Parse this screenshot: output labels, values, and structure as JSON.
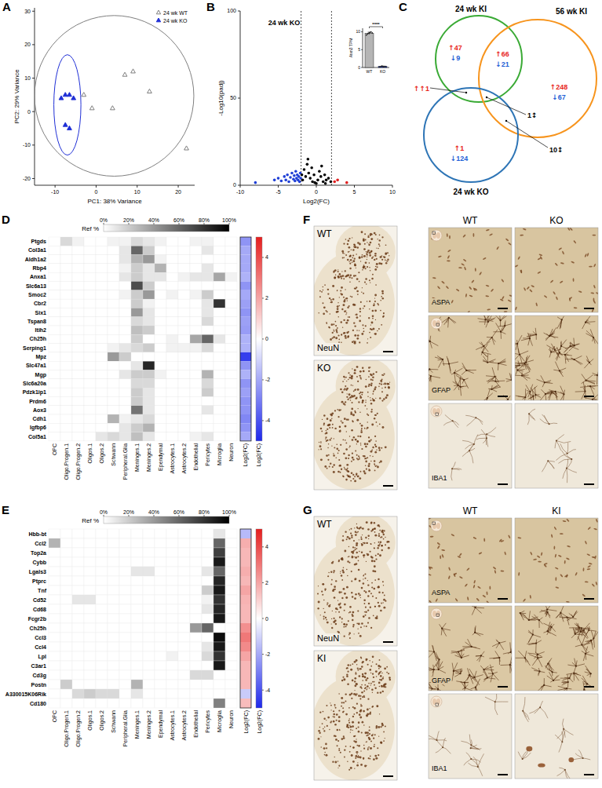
{
  "panel_letters": [
    "A",
    "B",
    "C",
    "D",
    "E",
    "F",
    "G"
  ],
  "chart_data": [
    {
      "type": "scatter",
      "x_label": "PC1: 38% Variance",
      "y_label": "PC2: 29% Variance",
      "xlim": [
        -15,
        24
      ],
      "ylim": [
        -22,
        31
      ],
      "xticks": [
        -10,
        0,
        10,
        20
      ],
      "yticks": [
        -20,
        -10,
        0,
        10,
        20,
        30
      ],
      "legend": "top-right",
      "series": [
        {
          "name": "24 wk WT",
          "color": "#7f7f7f",
          "marker": "triangle-open",
          "x": [
            -3,
            -1,
            4,
            7,
            9,
            13,
            22
          ],
          "values": [
            5,
            1,
            1,
            11,
            12,
            6,
            -11
          ],
          "ellipse": {
            "cx": 4.4,
            "cy": 4.7,
            "rx": 19.4,
            "ry": 24
          }
        },
        {
          "name": "24 wk KO",
          "color": "#1f2fd6",
          "marker": "triangle",
          "x": [
            -8.5,
            -7.5,
            -6.5,
            -5.5,
            -7.5,
            -6.5
          ],
          "values": [
            4,
            5,
            5,
            4,
            -4,
            -5
          ],
          "ellipse": {
            "cx": -7,
            "cy": 2,
            "rx": 3.3,
            "ry": 15
          }
        }
      ]
    },
    {
      "type": "scatter",
      "title": "24 wk KO",
      "x_label": "Log2(FC)",
      "y_label": "-Log10(padj)",
      "xlim": [
        -10,
        10
      ],
      "ylim": [
        0,
        100
      ],
      "xticks": [
        -10,
        -5,
        0,
        5,
        10
      ],
      "yticks": [
        0,
        50,
        100
      ],
      "reference_lines_x": [
        -2,
        2
      ],
      "series": [
        {
          "color": "#1f3fd6",
          "marker": "circle",
          "x": [
            -8,
            -5.5,
            -5,
            -4.6,
            -4.2,
            -4,
            -3.8,
            -3.6,
            -3.4,
            -3.2,
            -3,
            -2.9,
            -2.8,
            -2.7,
            -2.6,
            -2.5,
            -2.4,
            -2.3,
            -2.2,
            -2.1,
            -2.05
          ],
          "values": [
            1.5,
            3,
            4,
            2.5,
            5,
            3,
            6,
            2,
            4.5,
            7,
            3.5,
            5.5,
            2.5,
            8,
            4,
            6,
            3,
            5,
            2,
            7,
            4
          ]
        },
        {
          "color": "#000000",
          "marker": "circle",
          "x": [
            -1.9,
            -1.8,
            -1.6,
            -1.4,
            -1.2,
            -1.1,
            -1,
            -0.8,
            -0.6,
            -0.5,
            -0.3,
            -0.2,
            0,
            0.2,
            0.4,
            0.6,
            0.7,
            0.9,
            1.1,
            1.2,
            1.3,
            1.6,
            1.9
          ],
          "values": [
            6,
            3,
            9,
            5,
            12,
            15,
            7,
            4,
            10,
            2,
            6,
            1.5,
            1,
            3,
            8,
            5,
            11,
            2,
            6,
            1,
            3,
            4,
            2
          ]
        },
        {
          "color": "#e02020",
          "marker": "circle",
          "x": [
            2.4,
            2.8,
            4
          ],
          "values": [
            2,
            3,
            1.5
          ]
        }
      ]
    },
    {
      "type": "bar",
      "y_label": "Atxn3 TPM",
      "categories": [
        "WT",
        "KO"
      ],
      "values": [
        9.6,
        0.3
      ],
      "errors": [
        0.3,
        0.1
      ],
      "points": [
        [
          9.1,
          9.4,
          9.6,
          9.8,
          10.0,
          9.7
        ],
        [
          0.2,
          0.3,
          0.4,
          0.2,
          0.3,
          0.3
        ]
      ],
      "colors": [
        "#b5b5b5",
        "#1f3fd6"
      ],
      "ylim": [
        0,
        11
      ],
      "yticks": [
        0,
        5,
        10
      ],
      "annotation": "****"
    },
    {
      "type": "heatmap",
      "rows": [
        "Ptgds",
        "Col3a1",
        "Aldh1a2",
        "Rbp4",
        "Anxa1",
        "Slc6a13",
        "Smoc2",
        "Cbr2",
        "Six1",
        "Tspan8",
        "Itih2",
        "Ch25h",
        "Serping1",
        "Mpz",
        "Slc47a1",
        "Mgp",
        "Slc6a20a",
        "Pdzk1ip1",
        "Prdm6",
        "Aox3",
        "Cdh1",
        "Igfbp6",
        "Col5a1"
      ],
      "columns": [
        "OPC",
        "Oligo.Progen.1",
        "Oligo.Progen.2",
        "Oligos.1",
        "Oligos.2",
        "Schwann",
        "Peripheral.Glia",
        "Meninges.1",
        "Meninges.2",
        "Ependymal",
        "Astrocytes.1",
        "Astrocytes.2",
        "Endothelial",
        "Pericytes",
        "Microglia",
        "Neuron"
      ],
      "cells": [
        [
          0,
          15,
          5,
          0,
          0,
          5,
          5,
          15,
          10,
          5,
          0,
          0,
          5,
          5,
          0,
          0
        ],
        [
          0,
          0,
          0,
          0,
          0,
          0,
          10,
          60,
          20,
          0,
          0,
          0,
          0,
          10,
          0,
          0
        ],
        [
          0,
          0,
          0,
          0,
          0,
          0,
          10,
          30,
          40,
          5,
          0,
          0,
          0,
          0,
          0,
          0
        ],
        [
          0,
          0,
          0,
          0,
          0,
          0,
          5,
          20,
          10,
          30,
          0,
          0,
          0,
          10,
          0,
          0
        ],
        [
          0,
          0,
          0,
          0,
          0,
          0,
          10,
          20,
          10,
          10,
          0,
          5,
          10,
          10,
          35,
          5
        ],
        [
          0,
          0,
          0,
          0,
          0,
          0,
          0,
          70,
          20,
          0,
          0,
          0,
          0,
          0,
          0,
          0
        ],
        [
          0,
          0,
          0,
          0,
          0,
          0,
          5,
          20,
          40,
          0,
          5,
          0,
          5,
          20,
          0,
          0
        ],
        [
          0,
          0,
          0,
          0,
          0,
          0,
          0,
          20,
          5,
          0,
          0,
          0,
          0,
          10,
          80,
          0
        ],
        [
          0,
          0,
          0,
          0,
          0,
          0,
          0,
          40,
          10,
          0,
          0,
          0,
          0,
          10,
          0,
          0
        ],
        [
          0,
          0,
          0,
          0,
          0,
          0,
          0,
          15,
          10,
          0,
          0,
          0,
          0,
          15,
          0,
          0
        ],
        [
          0,
          0,
          0,
          0,
          0,
          0,
          0,
          25,
          20,
          0,
          0,
          0,
          0,
          0,
          0,
          0
        ],
        [
          0,
          0,
          0,
          0,
          0,
          0,
          0,
          20,
          0,
          0,
          5,
          0,
          35,
          60,
          10,
          0
        ],
        [
          0,
          0,
          0,
          0,
          0,
          5,
          10,
          15,
          20,
          0,
          5,
          5,
          5,
          15,
          0,
          0
        ],
        [
          0,
          0,
          0,
          0,
          0,
          40,
          20,
          0,
          0,
          0,
          0,
          0,
          0,
          0,
          0,
          0
        ],
        [
          0,
          0,
          0,
          0,
          0,
          0,
          0,
          10,
          85,
          0,
          0,
          0,
          0,
          0,
          0,
          0
        ],
        [
          0,
          0,
          0,
          0,
          0,
          0,
          10,
          20,
          20,
          5,
          0,
          0,
          0,
          30,
          0,
          0
        ],
        [
          0,
          0,
          0,
          0,
          0,
          0,
          0,
          15,
          15,
          0,
          0,
          0,
          0,
          15,
          0,
          0
        ],
        [
          0,
          0,
          0,
          0,
          0,
          0,
          0,
          20,
          10,
          0,
          0,
          0,
          0,
          20,
          0,
          0
        ],
        [
          0,
          0,
          0,
          0,
          0,
          0,
          0,
          20,
          10,
          0,
          0,
          0,
          0,
          0,
          0,
          0
        ],
        [
          0,
          0,
          0,
          0,
          0,
          0,
          0,
          55,
          10,
          0,
          0,
          0,
          0,
          10,
          0,
          0
        ],
        [
          0,
          0,
          0,
          0,
          0,
          30,
          5,
          10,
          15,
          0,
          0,
          0,
          0,
          0,
          0,
          0
        ],
        [
          0,
          0,
          0,
          0,
          0,
          0,
          10,
          20,
          30,
          0,
          0,
          0,
          0,
          0,
          0,
          0
        ],
        [
          0,
          0,
          0,
          0,
          10,
          15,
          10,
          25,
          10,
          0,
          0,
          0,
          5,
          10,
          0,
          0
        ]
      ],
      "color_bar": {
        "title": "Ref %",
        "range": [
          0,
          100
        ],
        "ticks": [
          {
            "value": 0,
            "label": "0%"
          },
          {
            "value": 20,
            "label": "20%"
          },
          {
            "value": 40,
            "label": "40%"
          },
          {
            "value": 60,
            "label": "60%"
          },
          {
            "value": 80,
            "label": "80%"
          },
          {
            "value": 100,
            "label": "100%"
          }
        ]
      },
      "fc_label": "Log2(FC)",
      "fc_values": [
        -2.5,
        -2,
        -2,
        -2,
        -1.8,
        -2.5,
        -2,
        -2.2,
        -2.5,
        -2.2,
        -2.3,
        -1.8,
        -1.8,
        -4.5,
        -2.5,
        -1.8,
        -2.5,
        -2.2,
        -2.5,
        -2.5,
        -2.8,
        -2.5,
        -2
      ],
      "fc_color_bar": {
        "title": "Log2(FC)",
        "range": [
          -5,
          5
        ],
        "ticks": [
          4,
          2,
          0,
          -2,
          -4
        ]
      }
    },
    {
      "type": "heatmap",
      "rows": [
        "Hbb-bt",
        "Ccl2",
        "Top2a",
        "Cybb",
        "Lgals3",
        "Ptprc",
        "Tnf",
        "Cd52",
        "Cd68",
        "Fcgr2b",
        "Ch25h",
        "Ccl3",
        "Ccl4",
        "Lpl",
        "C3ar1",
        "Cd3g",
        "Postn",
        "A330015K06Rik",
        "Cd180"
      ],
      "columns": [
        "OPC",
        "Oligo.Progen.1",
        "Oligo.Progen.2",
        "Oligos.1",
        "Oligos.2",
        "Schwann",
        "Peripheral.Glia",
        "Meninges.1",
        "Meninges.2",
        "Ependymal",
        "Astrocytes.1",
        "Astrocytes.2",
        "Endothelial",
        "Pericytes",
        "Microglia",
        "Neuron"
      ],
      "cells": [
        [
          0,
          0,
          0,
          0,
          0,
          0,
          0,
          0,
          0,
          0,
          0,
          0,
          0,
          0,
          10,
          0
        ],
        [
          30,
          0,
          0,
          0,
          0,
          0,
          0,
          0,
          0,
          0,
          0,
          0,
          0,
          0,
          60,
          0
        ],
        [
          0,
          0,
          0,
          0,
          0,
          0,
          0,
          0,
          0,
          0,
          0,
          0,
          0,
          0,
          75,
          0
        ],
        [
          0,
          0,
          0,
          0,
          0,
          0,
          0,
          0,
          0,
          0,
          0,
          0,
          0,
          0,
          90,
          0
        ],
        [
          0,
          0,
          0,
          0,
          0,
          0,
          0,
          10,
          10,
          0,
          0,
          0,
          0,
          10,
          60,
          0
        ],
        [
          0,
          0,
          0,
          0,
          0,
          0,
          0,
          0,
          0,
          0,
          0,
          0,
          0,
          0,
          85,
          0
        ],
        [
          0,
          0,
          0,
          0,
          0,
          0,
          0,
          0,
          0,
          0,
          0,
          0,
          0,
          20,
          90,
          0
        ],
        [
          0,
          0,
          10,
          10,
          0,
          0,
          0,
          0,
          0,
          0,
          0,
          0,
          0,
          5,
          80,
          0
        ],
        [
          0,
          0,
          0,
          0,
          0,
          0,
          0,
          0,
          0,
          0,
          0,
          0,
          0,
          10,
          85,
          0
        ],
        [
          0,
          0,
          0,
          0,
          0,
          0,
          0,
          0,
          0,
          0,
          0,
          0,
          0,
          0,
          90,
          0
        ],
        [
          0,
          0,
          0,
          0,
          0,
          0,
          0,
          0,
          0,
          0,
          0,
          0,
          40,
          60,
          0,
          0
        ],
        [
          0,
          0,
          0,
          0,
          0,
          0,
          0,
          0,
          0,
          0,
          0,
          0,
          0,
          0,
          95,
          0
        ],
        [
          0,
          0,
          0,
          0,
          0,
          0,
          0,
          0,
          0,
          0,
          0,
          0,
          0,
          10,
          90,
          0
        ],
        [
          0,
          0,
          0,
          0,
          0,
          0,
          0,
          0,
          0,
          0,
          5,
          0,
          0,
          15,
          80,
          0
        ],
        [
          0,
          0,
          0,
          0,
          0,
          0,
          0,
          0,
          0,
          0,
          0,
          0,
          0,
          0,
          90,
          0
        ],
        [
          0,
          0,
          0,
          0,
          0,
          0,
          0,
          0,
          0,
          0,
          0,
          0,
          15,
          15,
          0,
          0
        ],
        [
          0,
          20,
          0,
          0,
          0,
          0,
          0,
          30,
          0,
          0,
          0,
          0,
          0,
          0,
          0,
          0
        ],
        [
          0,
          0,
          15,
          20,
          15,
          15,
          0,
          10,
          0,
          0,
          0,
          0,
          0,
          0,
          0,
          0
        ],
        [
          0,
          0,
          0,
          0,
          0,
          0,
          0,
          0,
          0,
          0,
          0,
          0,
          0,
          0,
          50,
          0
        ]
      ],
      "color_bar": {
        "title": "Ref %",
        "range": [
          0,
          100
        ],
        "ticks": [
          {
            "value": 0,
            "label": "0%"
          },
          {
            "value": 20,
            "label": "20%"
          },
          {
            "value": 40,
            "label": "40%"
          },
          {
            "value": 60,
            "label": "60%"
          },
          {
            "value": 80,
            "label": "80%"
          },
          {
            "value": 100,
            "label": "100%"
          }
        ]
      },
      "fc_label": "Log2(FC)",
      "fc_values": [
        -1.6,
        1.8,
        1.6,
        1.6,
        1.8,
        1.6,
        2,
        1.7,
        1.6,
        1.6,
        2.5,
        3,
        2.6,
        2,
        1.6,
        1.6,
        1.6,
        -1.2,
        1.5
      ],
      "fc_color_bar": {
        "title": "Log2(FC)",
        "range": [
          -5,
          5
        ],
        "ticks": [
          4,
          2,
          0,
          -2,
          -4
        ]
      }
    }
  ],
  "venn": {
    "symbols": {
      "up": "↑",
      "down": "↓",
      "both_up": "↑↑",
      "mixed": "↕"
    },
    "sets": [
      {
        "label": "24 wk KI",
        "color": "#3aaa35"
      },
      {
        "label": "56 wk KI",
        "color": "#f7941d"
      },
      {
        "label": "24 wk KO",
        "color": "#2e75b6"
      }
    ],
    "regions": [
      {
        "sets": [
          0
        ],
        "up": 47,
        "down": 9
      },
      {
        "sets": [
          0,
          1
        ],
        "up": 66,
        "down": 21
      },
      {
        "sets": [
          1
        ],
        "up": 248,
        "down": 67
      },
      {
        "sets": [
          2
        ],
        "up": 1,
        "down": 124
      },
      {
        "sets": [
          0,
          2
        ],
        "both_up": 1
      },
      {
        "sets": [
          0,
          1,
          2
        ],
        "mixed": 1
      },
      {
        "sets": [
          1,
          2
        ],
        "mixed": 10
      }
    ]
  },
  "micrographs": [
    {
      "overview_stain": "NeuN",
      "overview_groups": [
        "WT",
        "KO"
      ],
      "columns": [
        "WT",
        "KO"
      ],
      "stains": [
        "ASPA",
        "GFAP",
        "IBA1"
      ]
    },
    {
      "overview_stain": "NeuN",
      "overview_groups": [
        "WT",
        "KI"
      ],
      "columns": [
        "WT",
        "KI"
      ],
      "stains": [
        "ASPA",
        "GFAP",
        "IBA1"
      ]
    }
  ]
}
